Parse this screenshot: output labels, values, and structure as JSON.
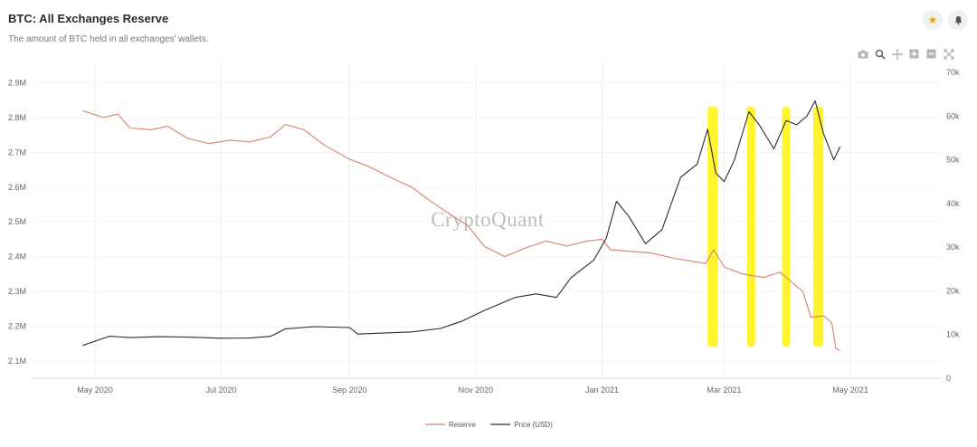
{
  "header": {
    "title": "BTC: All Exchanges Reserve",
    "subtitle": "The amount of BTC held in all exchanges' wallets."
  },
  "actions": {
    "favorite_icon": "star-icon",
    "alert_icon": "bell-icon"
  },
  "toolbar": {
    "items": [
      "camera-icon",
      "zoom-icon",
      "pan-icon",
      "zoom-in-icon",
      "zoom-out-icon",
      "autoscale-icon"
    ]
  },
  "watermark": "CryptoQuant",
  "colors": {
    "reserve": "#d4836f",
    "price": "#2b2b2b",
    "highlight": "#fff200"
  },
  "chart_data": {
    "type": "line",
    "title": "BTC: All Exchanges Reserve",
    "x_ticks": [
      "May 2020",
      "Jul 2020",
      "Sep 2020",
      "Nov 2020",
      "Jan 2021",
      "Mar 2021",
      "May 2021"
    ],
    "x_tick_dates": [
      "2020-05-01",
      "2020-07-01",
      "2020-09-01",
      "2020-11-01",
      "2021-01-01",
      "2021-03-01",
      "2021-05-01"
    ],
    "y_left": {
      "ticks": [
        "2.1M",
        "2.2M",
        "2.3M",
        "2.4M",
        "2.5M",
        "2.6M",
        "2.7M",
        "2.8M",
        "2.9M"
      ],
      "range": [
        2050000,
        2930000
      ]
    },
    "y_right": {
      "ticks": [
        "0",
        "10k",
        "20k",
        "30k",
        "40k",
        "50k",
        "60k",
        "70k"
      ],
      "range": [
        0,
        70000
      ]
    },
    "legend": {
      "position": "bottom-center"
    },
    "series": [
      {
        "name": "Reserve",
        "axis": "left",
        "color": "#d4836f",
        "points": [
          [
            "2020-04-25",
            2820000
          ],
          [
            "2020-05-05",
            2800000
          ],
          [
            "2020-05-12",
            2810000
          ],
          [
            "2020-05-18",
            2770000
          ],
          [
            "2020-05-28",
            2765000
          ],
          [
            "2020-06-05",
            2775000
          ],
          [
            "2020-06-15",
            2740000
          ],
          [
            "2020-06-25",
            2725000
          ],
          [
            "2020-07-05",
            2735000
          ],
          [
            "2020-07-15",
            2730000
          ],
          [
            "2020-07-25",
            2745000
          ],
          [
            "2020-08-01",
            2780000
          ],
          [
            "2020-08-10",
            2765000
          ],
          [
            "2020-08-20",
            2720000
          ],
          [
            "2020-09-01",
            2680000
          ],
          [
            "2020-09-10",
            2660000
          ],
          [
            "2020-09-20",
            2630000
          ],
          [
            "2020-10-01",
            2600000
          ],
          [
            "2020-10-10",
            2560000
          ],
          [
            "2020-10-20",
            2520000
          ],
          [
            "2020-10-28",
            2490000
          ],
          [
            "2020-11-05",
            2430000
          ],
          [
            "2020-11-15",
            2400000
          ],
          [
            "2020-11-25",
            2425000
          ],
          [
            "2020-12-05",
            2445000
          ],
          [
            "2020-12-15",
            2430000
          ],
          [
            "2020-12-25",
            2445000
          ],
          [
            "2021-01-01",
            2450000
          ],
          [
            "2021-01-05",
            2420000
          ],
          [
            "2021-01-15",
            2415000
          ],
          [
            "2021-01-25",
            2410000
          ],
          [
            "2021-02-05",
            2395000
          ],
          [
            "2021-02-15",
            2385000
          ],
          [
            "2021-02-20",
            2380000
          ],
          [
            "2021-02-24",
            2420000
          ],
          [
            "2021-03-01",
            2370000
          ],
          [
            "2021-03-10",
            2350000
          ],
          [
            "2021-03-20",
            2340000
          ],
          [
            "2021-03-28",
            2355000
          ],
          [
            "2021-04-02",
            2330000
          ],
          [
            "2021-04-08",
            2300000
          ],
          [
            "2021-04-12",
            2225000
          ],
          [
            "2021-04-18",
            2230000
          ],
          [
            "2021-04-22",
            2210000
          ],
          [
            "2021-04-24",
            2135000
          ],
          [
            "2021-04-26",
            2130000
          ]
        ]
      },
      {
        "name": "Price (USD)",
        "axis": "right",
        "color": "#2b2b2b",
        "points": [
          [
            "2020-04-25",
            7500
          ],
          [
            "2020-05-08",
            9600
          ],
          [
            "2020-05-18",
            9300
          ],
          [
            "2020-06-01",
            9500
          ],
          [
            "2020-06-15",
            9400
          ],
          [
            "2020-07-01",
            9150
          ],
          [
            "2020-07-15",
            9200
          ],
          [
            "2020-07-25",
            9600
          ],
          [
            "2020-08-01",
            11300
          ],
          [
            "2020-08-15",
            11800
          ],
          [
            "2020-09-01",
            11600
          ],
          [
            "2020-09-05",
            10100
          ],
          [
            "2020-09-20",
            10400
          ],
          [
            "2020-10-01",
            10600
          ],
          [
            "2020-10-15",
            11400
          ],
          [
            "2020-10-25",
            13000
          ],
          [
            "2020-11-05",
            15500
          ],
          [
            "2020-11-20",
            18500
          ],
          [
            "2020-11-30",
            19300
          ],
          [
            "2020-12-10",
            18500
          ],
          [
            "2020-12-17",
            23000
          ],
          [
            "2020-12-28",
            27000
          ],
          [
            "2021-01-03",
            32000
          ],
          [
            "2021-01-08",
            40500
          ],
          [
            "2021-01-14",
            37000
          ],
          [
            "2021-01-22",
            30800
          ],
          [
            "2021-01-30",
            34000
          ],
          [
            "2021-02-08",
            46000
          ],
          [
            "2021-02-16",
            49000
          ],
          [
            "2021-02-21",
            57000
          ],
          [
            "2021-02-25",
            47000
          ],
          [
            "2021-03-01",
            45000
          ],
          [
            "2021-03-06",
            50000
          ],
          [
            "2021-03-13",
            61000
          ],
          [
            "2021-03-18",
            58000
          ],
          [
            "2021-03-25",
            52500
          ],
          [
            "2021-03-31",
            59000
          ],
          [
            "2021-04-05",
            58000
          ],
          [
            "2021-04-10",
            60000
          ],
          [
            "2021-04-14",
            63500
          ],
          [
            "2021-04-18",
            56000
          ],
          [
            "2021-04-23",
            50000
          ],
          [
            "2021-04-26",
            53000
          ]
        ]
      }
    ],
    "highlighted_ranges": [
      [
        "2021-02-21",
        "2021-02-26"
      ],
      [
        "2021-03-12",
        "2021-03-16"
      ],
      [
        "2021-03-29",
        "2021-04-02"
      ],
      [
        "2021-04-13",
        "2021-04-18"
      ]
    ]
  }
}
